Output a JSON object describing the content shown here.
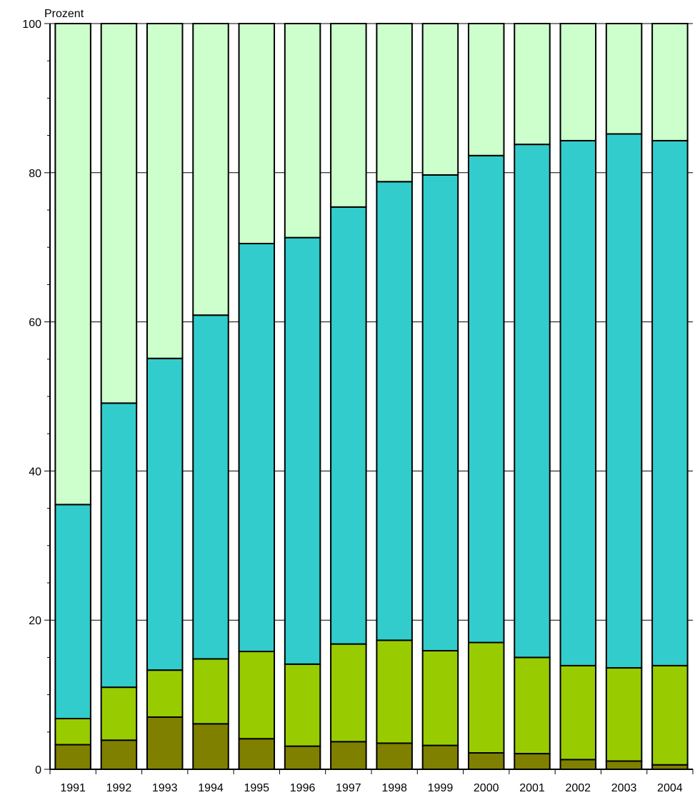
{
  "chart_data": {
    "type": "bar",
    "stacked": true,
    "ylabel": "Prozent",
    "ylim": [
      0,
      100
    ],
    "yticks": [
      0,
      20,
      40,
      60,
      80,
      100
    ],
    "ytick_labels": [
      "0",
      "20",
      "40",
      "60",
      "80",
      "100"
    ],
    "grid": true,
    "categories": [
      "1991",
      "1992",
      "1993",
      "1994",
      "1995",
      "1996",
      "1997",
      "1998",
      "1999",
      "2000",
      "2001",
      "2002",
      "2003",
      "2004"
    ],
    "series": [
      {
        "color": "#808000",
        "values": [
          3.3,
          3.9,
          7.0,
          6.1,
          4.1,
          3.1,
          3.7,
          3.5,
          3.2,
          2.2,
          2.1,
          1.3,
          1.1,
          0.6
        ]
      },
      {
        "color": "#99cc00",
        "values": [
          3.5,
          7.1,
          6.3,
          8.7,
          11.7,
          11.0,
          13.1,
          13.8,
          12.7,
          14.8,
          12.9,
          12.6,
          12.5,
          13.3
        ]
      },
      {
        "color": "#33cccc",
        "values": [
          28.7,
          38.1,
          41.8,
          46.1,
          54.7,
          57.2,
          58.6,
          61.5,
          63.8,
          65.3,
          68.8,
          70.4,
          71.6,
          70.4
        ]
      },
      {
        "color": "#ccffcc",
        "values": [
          64.5,
          50.9,
          44.9,
          39.1,
          29.5,
          28.7,
          24.6,
          21.2,
          20.3,
          17.7,
          16.2,
          15.7,
          14.8,
          15.7
        ]
      }
    ]
  }
}
